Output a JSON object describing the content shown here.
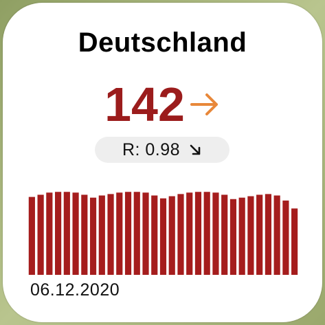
{
  "widget": {
    "title": "Deutschland",
    "incidence": "142",
    "trend_icon": "arrow-right-icon",
    "r_label": "R: 0.98",
    "r_trend_icon": "arrow-down-right-icon",
    "date": "06.12.2020"
  },
  "colors": {
    "value": "#9b1c1c",
    "trend_arrow": "#e8883a",
    "bar": "#a51d1d",
    "pill_bg": "#eeeeee"
  },
  "chart_data": {
    "type": "bar",
    "title": "",
    "xlabel": "",
    "ylabel": "",
    "ylim": [
      0,
      120
    ],
    "values": [
      108,
      111,
      114,
      115,
      115,
      114,
      111,
      107,
      110,
      112,
      114,
      115,
      115,
      114,
      110,
      106,
      109,
      112,
      114,
      115,
      115,
      114,
      111,
      105,
      107,
      109,
      111,
      112,
      110,
      103,
      92
    ]
  }
}
